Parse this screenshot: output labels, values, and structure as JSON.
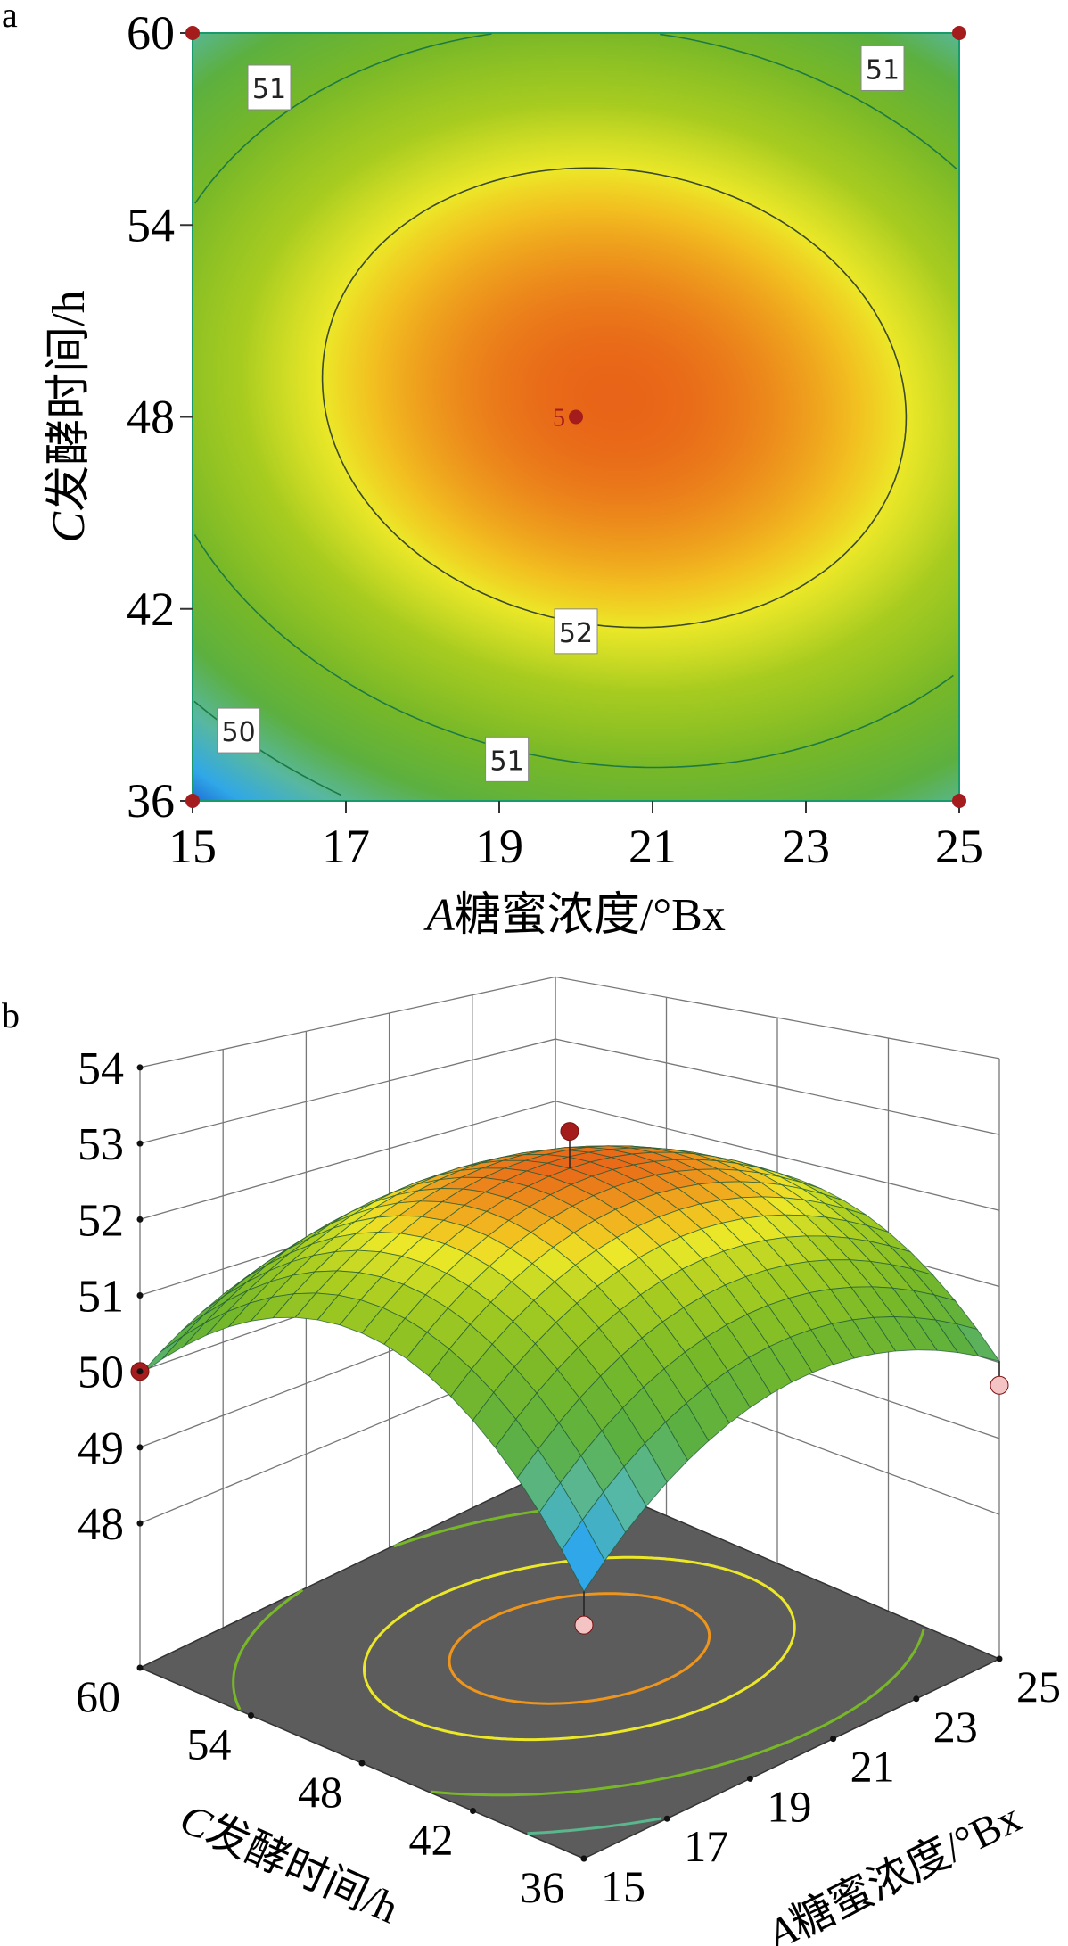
{
  "chart_data": [
    {
      "panel_label": "a",
      "type": "contour",
      "xlabel_italic": "A",
      "xlabel": "糖蜜浓度/°Bx",
      "ylabel_italic": "C",
      "ylabel": "发酵时间/h",
      "xlim": [
        15,
        25
      ],
      "ylim": [
        36,
        60
      ],
      "xticks": [
        "15",
        "17",
        "19",
        "21",
        "23",
        "25"
      ],
      "yticks": [
        "36",
        "42",
        "48",
        "54",
        "60"
      ],
      "contour_levels": [
        50,
        51,
        52
      ],
      "contour_labels": [
        {
          "text": "51",
          "at": [
            16.0,
            58.3
          ]
        },
        {
          "text": "51",
          "at": [
            24.0,
            58.9
          ]
        },
        {
          "text": "52",
          "at": [
            20.0,
            41.3
          ]
        },
        {
          "text": "51",
          "at": [
            19.1,
            37.3
          ]
        },
        {
          "text": "50",
          "at": [
            15.6,
            38.2
          ]
        }
      ],
      "design_points": [
        {
          "A": 15,
          "C": 60
        },
        {
          "A": 25,
          "C": 60
        },
        {
          "A": 15,
          "C": 36
        },
        {
          "A": 25,
          "C": 36
        },
        {
          "A": 20,
          "C": 48,
          "label": "5"
        }
      ],
      "point_color": "#a51c1c",
      "colormap_stops": [
        {
          "value": 48.9,
          "color": "#1450c8"
        },
        {
          "value": 49.4,
          "color": "#30a8e8"
        },
        {
          "value": 49.9,
          "color": "#58b8a0"
        },
        {
          "value": 50.4,
          "color": "#5cb040"
        },
        {
          "value": 51.0,
          "color": "#78b828"
        },
        {
          "value": 51.6,
          "color": "#a8cc20"
        },
        {
          "value": 52.0,
          "color": "#ece828"
        },
        {
          "value": 52.2,
          "color": "#f2c020"
        },
        {
          "value": 52.63,
          "color": "#e86418"
        }
      ]
    },
    {
      "panel_label": "b",
      "type": "surface",
      "xlabel_italic": "A",
      "xlabel": "糖蜜浓度/°Bx",
      "ylabel_italic": "C",
      "ylabel": "发酵时间/h",
      "xlim": [
        15,
        25
      ],
      "ylim": [
        36,
        60
      ],
      "zlim": [
        48,
        54
      ],
      "xticks": [
        "15",
        "17",
        "19",
        "21",
        "23",
        "25"
      ],
      "yticks": [
        "36",
        "42",
        "48",
        "54",
        "60"
      ],
      "zticks": [
        "48",
        "49",
        "50",
        "51",
        "52",
        "53",
        "54"
      ],
      "floor_contour_levels": [
        50,
        51,
        52,
        52.4
      ],
      "floor_color": "#5c5c5c",
      "design_points": [
        {
          "A": 20,
          "C": 48,
          "response": 53.1,
          "color": "#a51c1c"
        },
        {
          "A": 15,
          "C": 60,
          "response": 50.0,
          "color": "#a51c1c"
        },
        {
          "A": 15,
          "C": 36,
          "response": 48.7,
          "color": "#f4c4c4"
        },
        {
          "A": 25,
          "C": 36,
          "response": 49.7,
          "color": "#f4c4c4"
        }
      ]
    }
  ]
}
